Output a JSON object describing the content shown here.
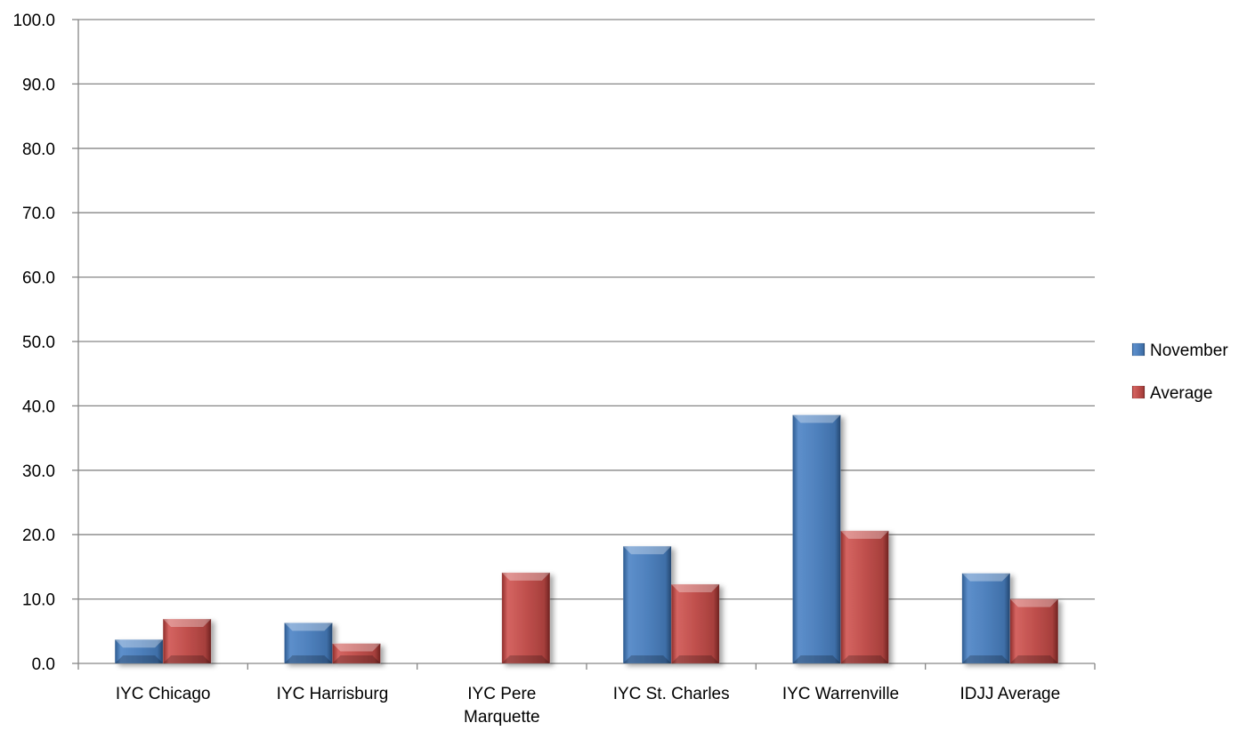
{
  "chart_data": {
    "type": "bar",
    "categories": [
      [
        "IYC Chicago"
      ],
      [
        "IYC Harrisburg"
      ],
      [
        "IYC Pere",
        "Marquette"
      ],
      [
        "IYC St. Charles"
      ],
      [
        "IYC Warrenville"
      ],
      [
        "IDJJ Average"
      ]
    ],
    "series": [
      {
        "name": "November",
        "color": "#4f81bd",
        "values": [
          3.7,
          6.3,
          0.0,
          18.2,
          38.6,
          14.0
        ]
      },
      {
        "name": "Average",
        "color": "#c0504d",
        "values": [
          6.9,
          3.1,
          14.1,
          12.3,
          20.6,
          10.0
        ]
      }
    ],
    "ylim": [
      0,
      100
    ],
    "yticks": [
      "0.0",
      "10.0",
      "20.0",
      "30.0",
      "40.0",
      "50.0",
      "60.0",
      "70.0",
      "80.0",
      "90.0",
      "100.0"
    ],
    "ytick_values": [
      0,
      10,
      20,
      30,
      40,
      50,
      60,
      70,
      80,
      90,
      100
    ],
    "grid": true,
    "legend_position": "right"
  }
}
